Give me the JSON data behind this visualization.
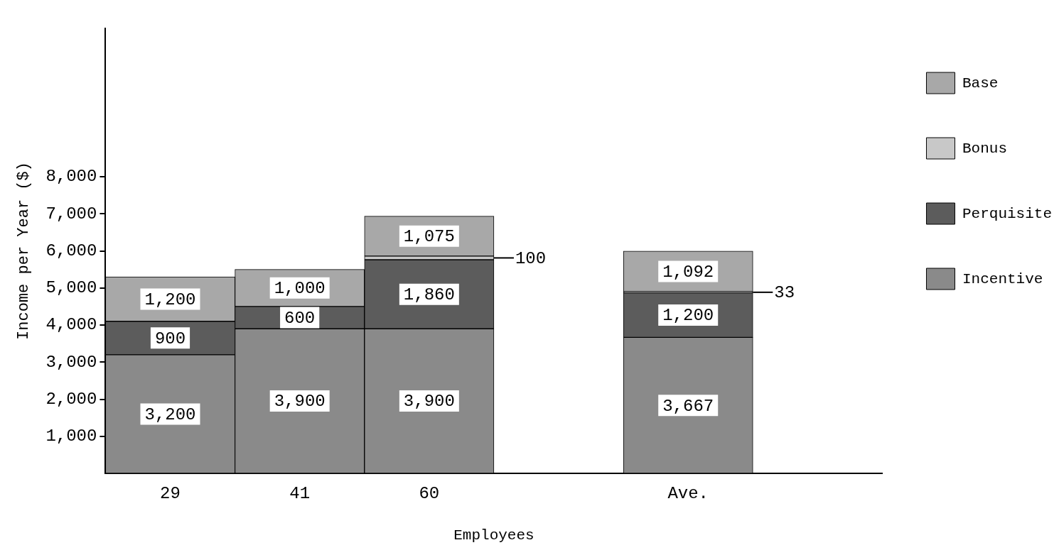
{
  "chart_data": {
    "type": "bar",
    "stacked": true,
    "xlabel": "Employees",
    "ylabel": "Income per Year ($)",
    "categories": [
      "29",
      "41",
      "60",
      null,
      "Ave.",
      null
    ],
    "series": [
      {
        "name": "Incentive",
        "color": "#8a8a8a",
        "values": [
          3200,
          3900,
          3900,
          null,
          3667,
          null
        ],
        "value_labels": [
          "3,200",
          "3,900",
          "3,900",
          null,
          "3,667",
          null
        ]
      },
      {
        "name": "Perquisite",
        "color": "#5c5c5c",
        "values": [
          900,
          600,
          1860,
          null,
          1200,
          null
        ],
        "value_labels": [
          "900",
          "600",
          "1,860",
          null,
          "1,200",
          null
        ]
      },
      {
        "name": "Bonus",
        "color": "#c8c8c8",
        "values": [
          null,
          null,
          100,
          null,
          33,
          null
        ],
        "value_labels": [
          null,
          null,
          "100",
          null,
          "33",
          null
        ]
      },
      {
        "name": "Base",
        "color": "#a8a8a8",
        "values": [
          1200,
          1000,
          1075,
          null,
          1092,
          null
        ],
        "value_labels": [
          "1,200",
          "1,000",
          "1,075",
          null,
          "1,092",
          null
        ]
      }
    ],
    "ylim": [
      0,
      12000
    ],
    "yticks": [
      {
        "value": 1000,
        "label": "1,000"
      },
      {
        "value": 2000,
        "label": "2,000"
      },
      {
        "value": 3000,
        "label": "3,000"
      },
      {
        "value": 4000,
        "label": "4,000"
      },
      {
        "value": 5000,
        "label": "5,000"
      },
      {
        "value": 6000,
        "label": "6,000"
      },
      {
        "value": 7000,
        "label": "7,000"
      },
      {
        "value": 8000,
        "label": "8,000"
      }
    ],
    "grid": false,
    "legend": "top right"
  }
}
